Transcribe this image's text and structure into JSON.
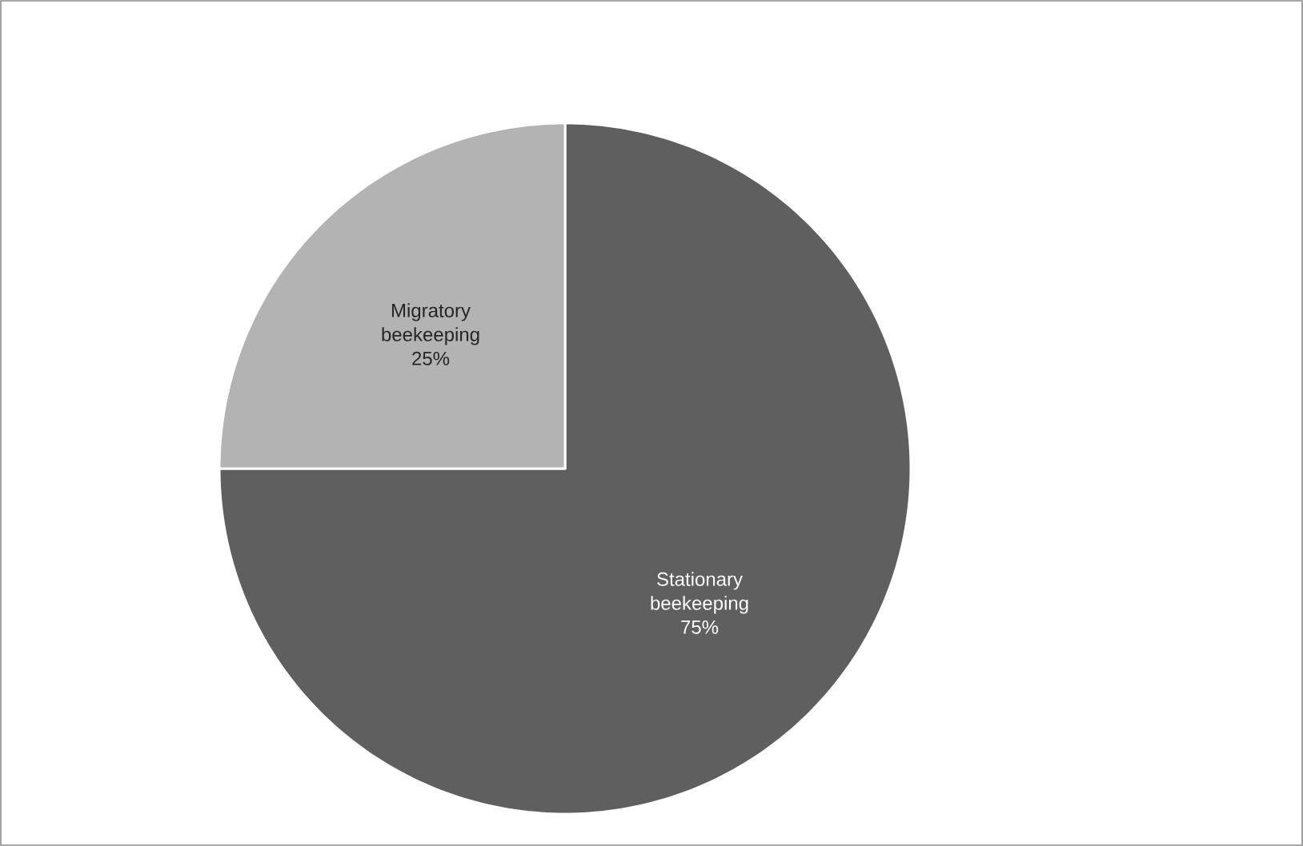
{
  "chart_data": {
    "type": "pie",
    "categories": [
      "Stationary beekeeping",
      "Migratory beekeeping"
    ],
    "values": [
      75,
      25
    ],
    "colors": [
      "#5f5f5f",
      "#b3b3b3"
    ],
    "value_labels": [
      "75%",
      "25%"
    ]
  }
}
